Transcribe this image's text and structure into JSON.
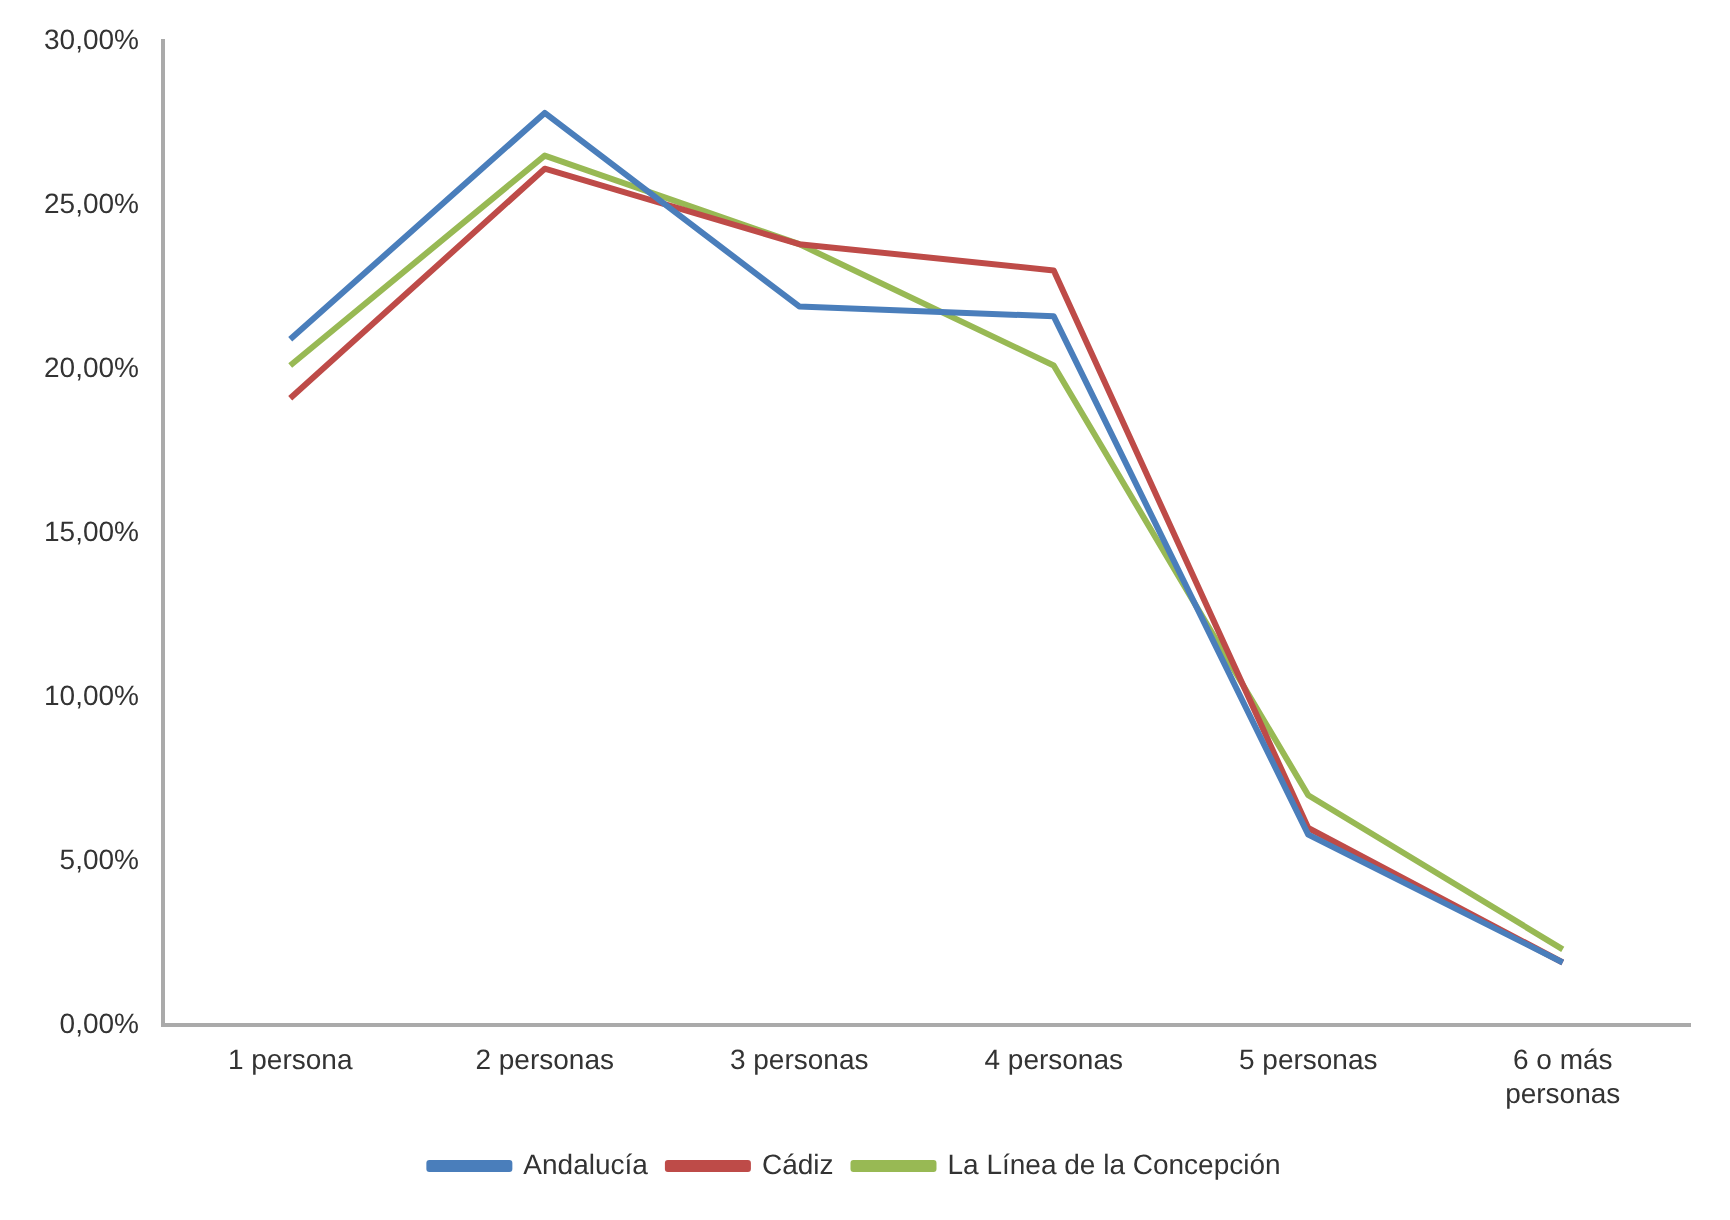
{
  "chart_data": {
    "type": "line",
    "categories": [
      "1 persona",
      "2 personas",
      "3 personas",
      "4 personas",
      "5 personas",
      "6 o más personas"
    ],
    "series": [
      {
        "name": "Andalucía",
        "color": "#4a7ebb",
        "values": [
          20.9,
          27.8,
          21.9,
          21.6,
          5.8,
          1.9
        ]
      },
      {
        "name": "Cádiz",
        "color": "#be4b48",
        "values": [
          19.1,
          26.1,
          23.8,
          23.0,
          6.0,
          1.9
        ]
      },
      {
        "name": "La Línea de la Concepción",
        "color": "#98b954",
        "values": [
          20.1,
          26.5,
          23.8,
          20.1,
          7.0,
          2.3
        ]
      }
    ],
    "ylim": [
      0,
      30
    ],
    "yticks": [
      {
        "value": 0,
        "label": "0,00%"
      },
      {
        "value": 5,
        "label": "5,00%"
      },
      {
        "value": 10,
        "label": "10,00%"
      },
      {
        "value": 15,
        "label": "15,00%"
      },
      {
        "value": 20,
        "label": "20,00%"
      },
      {
        "value": 25,
        "label": "25,00%"
      },
      {
        "value": 30,
        "label": "30,00%"
      }
    ],
    "grid": false,
    "legend": "bottom",
    "marker": "none",
    "line_style": "solid"
  }
}
